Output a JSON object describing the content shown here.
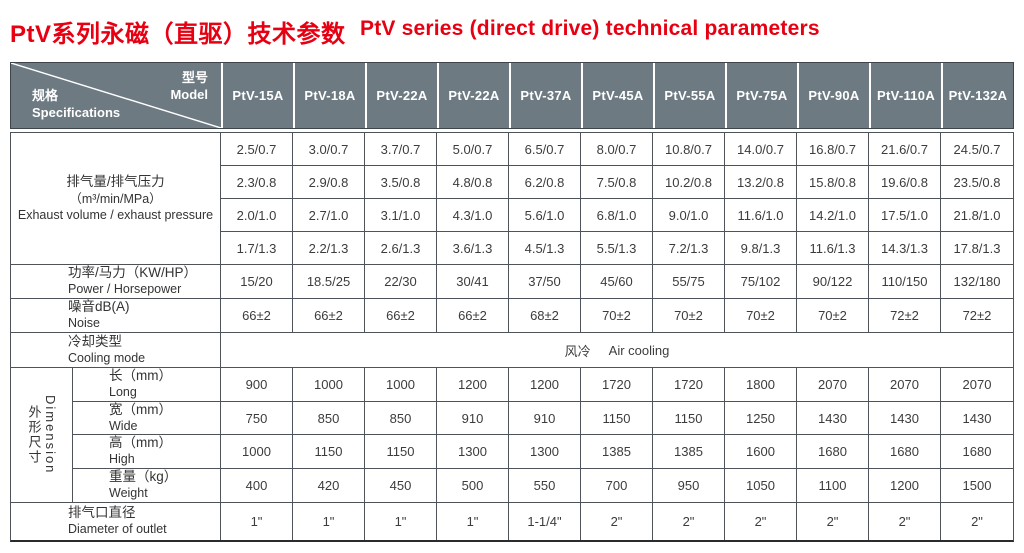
{
  "title": {
    "zh": "PtV系列永磁（直驱）技术参数",
    "en": "PtV series (direct drive) technical parameters"
  },
  "colors": {
    "title_red": "#e60012",
    "header_bg": "#6d7a82",
    "header_text": "#ffffff",
    "grid_line": "#4d5358",
    "body_text": "#3c3c3c"
  },
  "table": {
    "corner": {
      "top_zh": "型号",
      "top_en": "Model",
      "bottom_zh": "规格",
      "bottom_en": "Specifications"
    },
    "models": [
      "PtV-15A",
      "PtV-18A",
      "PtV-22A",
      "PtV-22A",
      "PtV-37A",
      "PtV-45A",
      "PtV-55A",
      "PtV-75A",
      "PtV-90A",
      "PtV-110A",
      "PtV-132A"
    ],
    "rows": {
      "exhaust": {
        "label_zh": "排气量/排气压力",
        "label_unit": "（m³/min/MPa）",
        "label_en": "Exhaust volume / exhaust pressure",
        "series": [
          [
            "2.5/0.7",
            "3.0/0.7",
            "3.7/0.7",
            "5.0/0.7",
            "6.5/0.7",
            "8.0/0.7",
            "10.8/0.7",
            "14.0/0.7",
            "16.8/0.7",
            "21.6/0.7",
            "24.5/0.7"
          ],
          [
            "2.3/0.8",
            "2.9/0.8",
            "3.5/0.8",
            "4.8/0.8",
            "6.2/0.8",
            "7.5/0.8",
            "10.2/0.8",
            "13.2/0.8",
            "15.8/0.8",
            "19.6/0.8",
            "23.5/0.8"
          ],
          [
            "2.0/1.0",
            "2.7/1.0",
            "3.1/1.0",
            "4.3/1.0",
            "5.6/1.0",
            "6.8/1.0",
            "9.0/1.0",
            "11.6/1.0",
            "14.2/1.0",
            "17.5/1.0",
            "21.8/1.0"
          ],
          [
            "1.7/1.3",
            "2.2/1.3",
            "2.6/1.3",
            "3.6/1.3",
            "4.5/1.3",
            "5.5/1.3",
            "7.2/1.3",
            "9.8/1.3",
            "11.6/1.3",
            "14.3/1.3",
            "17.8/1.3"
          ]
        ]
      },
      "power": {
        "label_zh": "功率/马力（KW/HP）",
        "label_en": "Power / Horsepower",
        "values": [
          "15/20",
          "18.5/25",
          "22/30",
          "30/41",
          "37/50",
          "45/60",
          "55/75",
          "75/102",
          "90/122",
          "110/150",
          "132/180"
        ]
      },
      "noise": {
        "label_zh": "噪音dB(A)",
        "label_en": "Noise",
        "values": [
          "66±2",
          "66±2",
          "66±2",
          "66±2",
          "68±2",
          "70±2",
          "70±2",
          "70±2",
          "70±2",
          "72±2",
          "72±2"
        ]
      },
      "cooling": {
        "label_zh": "冷却类型",
        "label_en": "Cooling mode",
        "value_zh": "风冷",
        "value_en": "Air cooling"
      },
      "dimensions": {
        "group_zh": "外形尺寸",
        "group_en": "Dimension",
        "items": [
          {
            "label_zh": "长（mm）",
            "label_en": "Long",
            "values": [
              "900",
              "1000",
              "1000",
              "1200",
              "1200",
              "1720",
              "1720",
              "1800",
              "2070",
              "2070",
              "2070"
            ]
          },
          {
            "label_zh": "宽（mm）",
            "label_en": "Wide",
            "values": [
              "750",
              "850",
              "850",
              "910",
              "910",
              "1150",
              "1150",
              "1250",
              "1430",
              "1430",
              "1430"
            ]
          },
          {
            "label_zh": "高（mm）",
            "label_en": "High",
            "values": [
              "1000",
              "1150",
              "1150",
              "1300",
              "1300",
              "1385",
              "1385",
              "1600",
              "1680",
              "1680",
              "1680"
            ]
          },
          {
            "label_zh": "重量（kg）",
            "label_en": "Weight",
            "values": [
              "400",
              "420",
              "450",
              "500",
              "550",
              "700",
              "950",
              "1050",
              "1100",
              "1200",
              "1500"
            ]
          }
        ]
      },
      "outlet": {
        "label_zh": "排气口直径",
        "label_en": "Diameter of outlet",
        "values": [
          "1\"",
          "1\"",
          "1\"",
          "1\"",
          "1-1/4\"",
          "2\"",
          "2\"",
          "2\"",
          "2\"",
          "2\"",
          "2\""
        ]
      }
    }
  }
}
